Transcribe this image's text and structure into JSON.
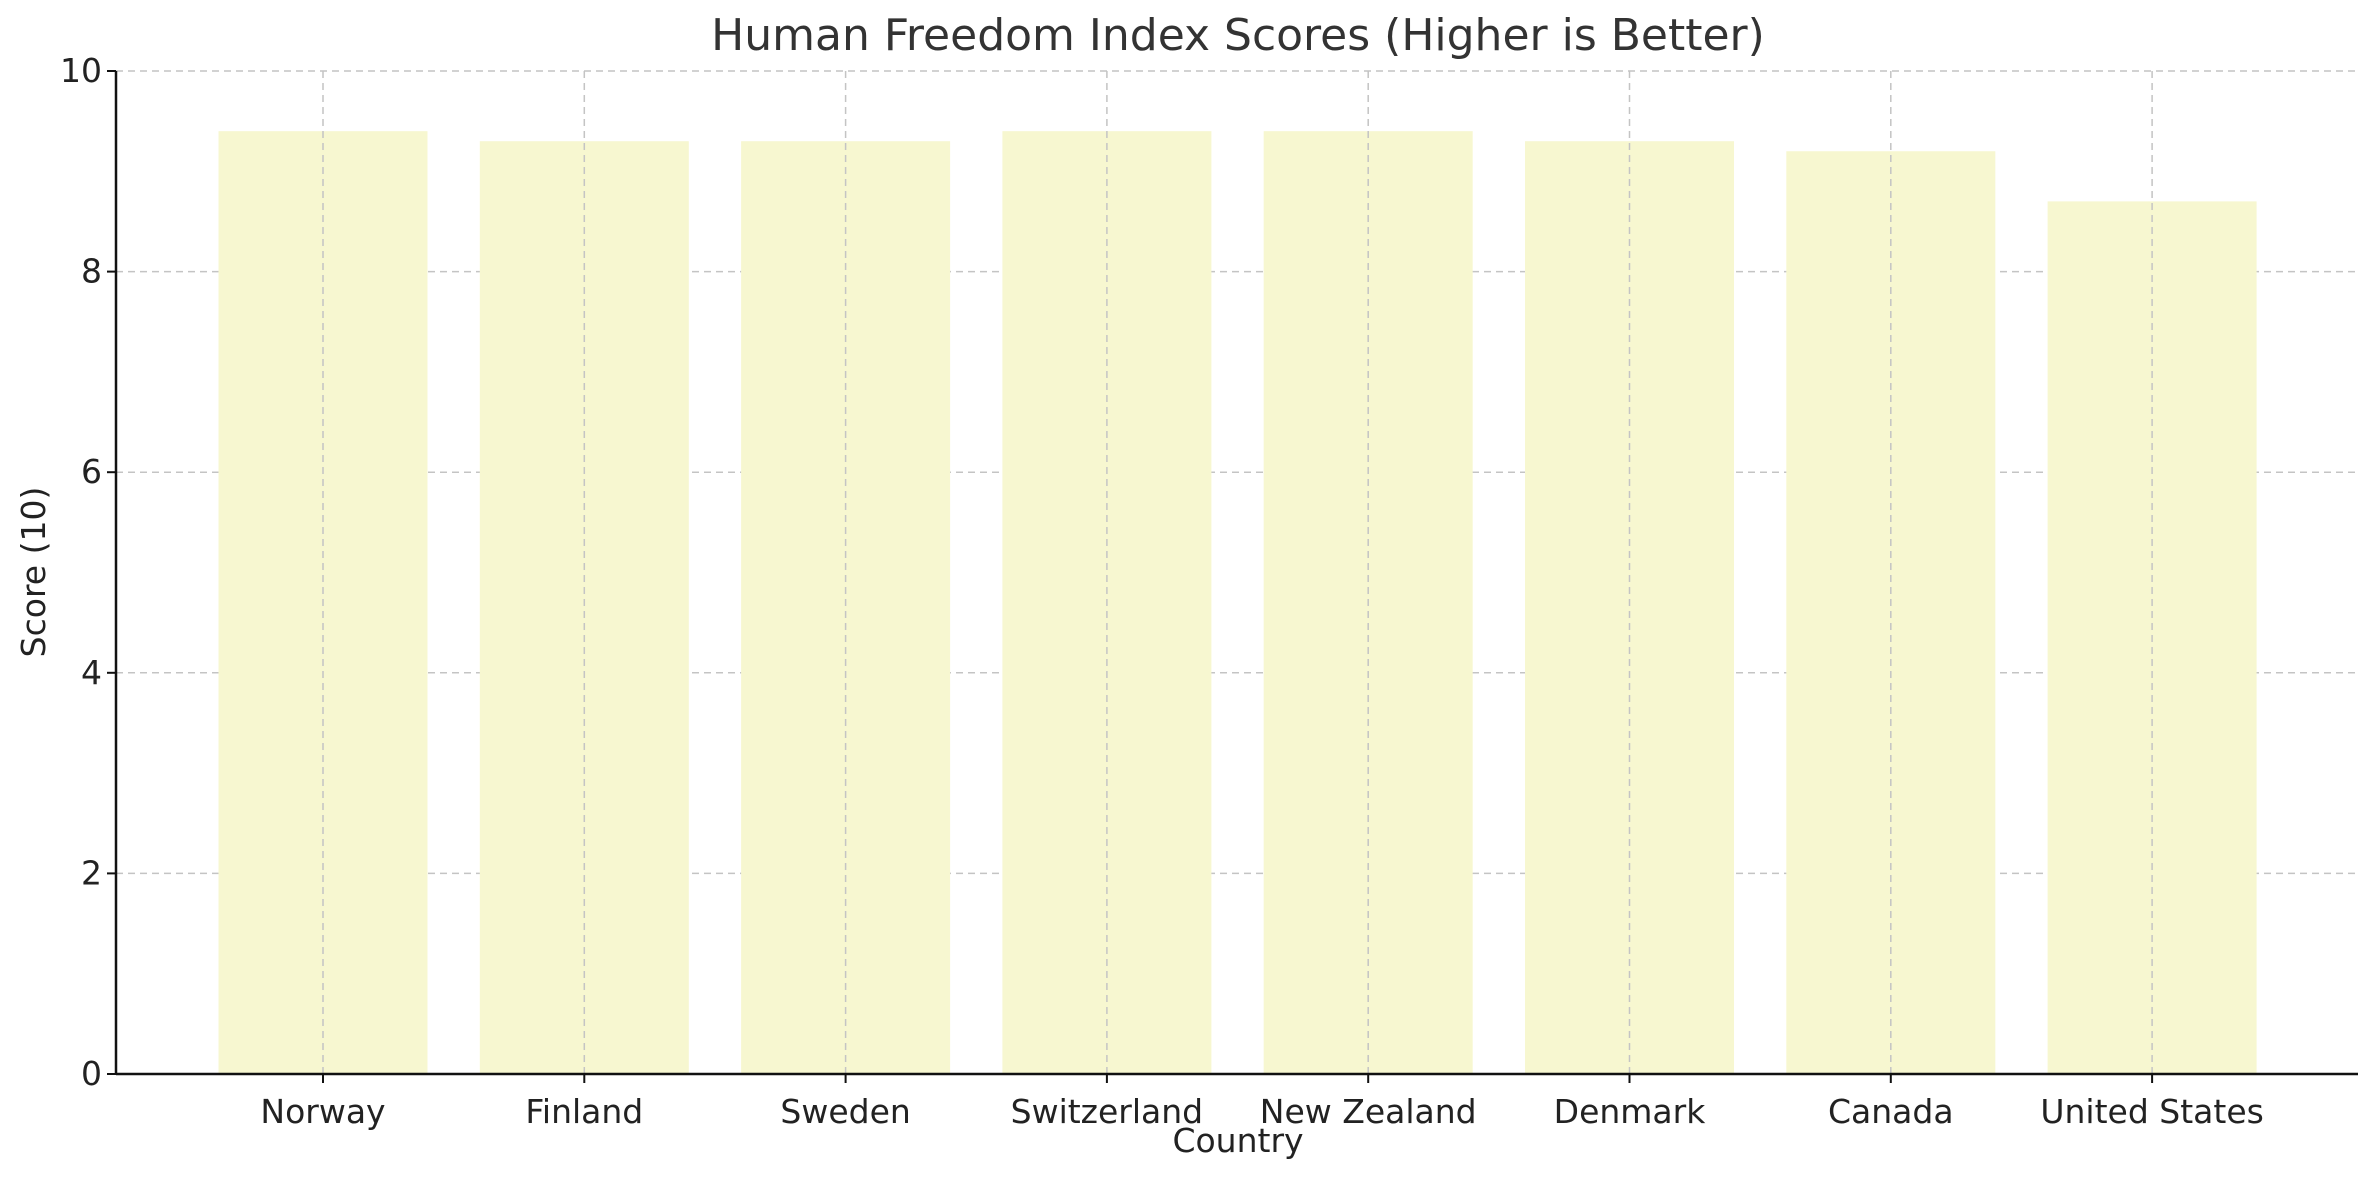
{
  "chart_data": {
    "type": "bar",
    "title": "Human Freedom Index Scores (Higher is Better)",
    "xlabel": "Country",
    "ylabel": "Score (10)",
    "categories": [
      "Norway",
      "Finland",
      "Sweden",
      "Switzerland",
      "New Zealand",
      "Denmark",
      "Canada",
      "United States"
    ],
    "values": [
      9.4,
      9.3,
      9.3,
      9.4,
      9.4,
      9.3,
      9.2,
      8.7
    ],
    "ylim": [
      0,
      10
    ],
    "yticks": [
      "0",
      "2",
      "4",
      "6",
      "8",
      "10"
    ],
    "grid": true,
    "bar_color": "#f7f7d0"
  }
}
